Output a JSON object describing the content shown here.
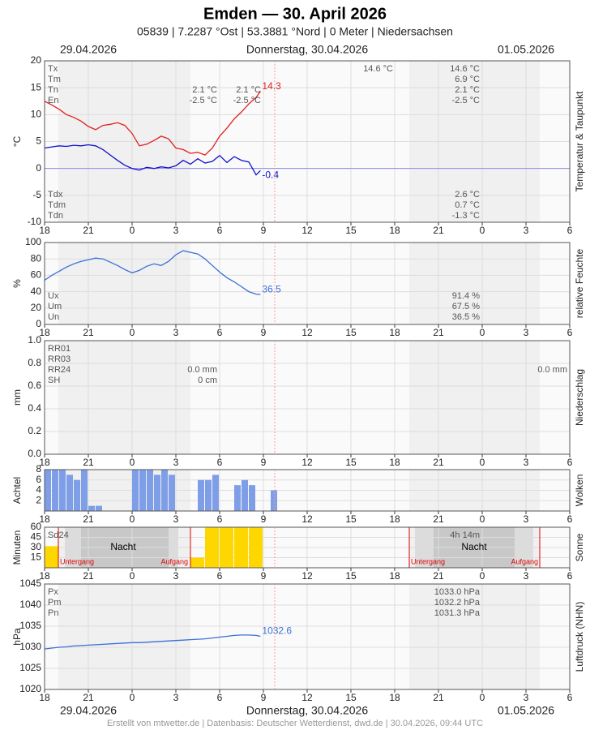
{
  "header": {
    "title": "Emden  —  30. April 2026",
    "subtitle": "05839  |  7.2287 °Ost  |  53.3881 °Nord  |  0 Meter  |  Niedersachsen",
    "date_left": "29.04.2026",
    "date_center": "Donnerstag, 30.04.2026",
    "date_right": "01.05.2026"
  },
  "footer": "Erstellt von mtwetter.de | Datenbasis: Deutscher Wetterdienst, dwd.de | 30.04.2026, 09:44 UTC",
  "chart_data": [
    {
      "type": "line",
      "ylabel": "°C",
      "side_label": "Temperatur & Taupunkt",
      "xlim": [
        0,
        36
      ],
      "xticks": [
        {
          "value": 0,
          "label": "18"
        },
        {
          "value": 3,
          "label": "21"
        },
        {
          "value": 6,
          "label": "0"
        },
        {
          "value": 9,
          "label": "3"
        },
        {
          "value": 12,
          "label": "6"
        },
        {
          "value": 15,
          "label": "9"
        },
        {
          "value": 18,
          "label": "12"
        },
        {
          "value": 21,
          "label": "15"
        },
        {
          "value": 24,
          "label": "18"
        },
        {
          "value": 27,
          "label": "21"
        },
        {
          "value": 30,
          "label": "0"
        },
        {
          "value": 33,
          "label": "3"
        },
        {
          "value": 36,
          "label": "6"
        }
      ],
      "ylim": [
        -10,
        20
      ],
      "yticks": [
        -10,
        -5,
        0,
        5,
        10,
        15,
        20
      ],
      "x": [
        0,
        0.5,
        1,
        1.5,
        2,
        2.5,
        3,
        3.5,
        4,
        4.5,
        5,
        5.5,
        6,
        6.5,
        7,
        7.5,
        8,
        8.5,
        9,
        9.5,
        10,
        10.5,
        11,
        11.5,
        12,
        12.5,
        13,
        13.5,
        14,
        14.5,
        14.8
      ],
      "series": [
        {
          "color": "#e02020",
          "values": [
            12.5,
            11.8,
            11,
            10,
            9.5,
            8.8,
            7.8,
            7.2,
            8,
            8.2,
            8.5,
            8,
            6.5,
            4.2,
            4.5,
            5.2,
            6,
            5.5,
            3.8,
            3.5,
            2.8,
            3,
            2.5,
            3.8,
            6,
            7.5,
            9.2,
            10.5,
            12,
            13.2,
            14.3
          ]
        },
        {
          "color": "#1010cc",
          "values": [
            3.8,
            4,
            4.2,
            4.1,
            4.3,
            4.2,
            4.4,
            4.2,
            3.5,
            2.5,
            1.5,
            0.6,
            0,
            -0.3,
            0.2,
            0,
            0.3,
            0.1,
            0.5,
            1.5,
            0.8,
            1.8,
            1,
            1.3,
            2.4,
            1.1,
            2.2,
            1.5,
            1.2,
            -1.2,
            -0.4
          ]
        }
      ],
      "stats": [
        [
          "Tx",
          null,
          null,
          "14.6 °C",
          "14.6 °C"
        ],
        [
          "Tm",
          null,
          null,
          null,
          "6.9 °C"
        ],
        [
          "Tn",
          "2.1 °C",
          "2.1 °C",
          null,
          "2.1 °C"
        ],
        [
          "En",
          "-2.5 °C",
          "-2.5 °C",
          null,
          "-2.5 °C"
        ]
      ],
      "stats_bottom": [
        [
          "Tdx",
          "2.6 °C"
        ],
        [
          "Tdm",
          "0.7 °C"
        ],
        [
          "Tdn",
          "-1.3 °C"
        ]
      ]
    },
    {
      "type": "line",
      "ylabel": "%",
      "side_label": "relative Feuchte",
      "xlim": [
        0,
        36
      ],
      "xticks": [
        {
          "value": 0,
          "label": "18"
        },
        {
          "value": 3,
          "label": "21"
        },
        {
          "value": 6,
          "label": "0"
        },
        {
          "value": 9,
          "label": "3"
        },
        {
          "value": 12,
          "label": "6"
        },
        {
          "value": 15,
          "label": "9"
        },
        {
          "value": 18,
          "label": "12"
        },
        {
          "value": 21,
          "label": "15"
        },
        {
          "value": 24,
          "label": "18"
        },
        {
          "value": 27,
          "label": "21"
        },
        {
          "value": 30,
          "label": "0"
        },
        {
          "value": 33,
          "label": "3"
        },
        {
          "value": 36,
          "label": "6"
        }
      ],
      "ylim": [
        0,
        100
      ],
      "yticks": [
        0,
        20,
        40,
        60,
        80,
        100
      ],
      "x": [
        0,
        0.5,
        1,
        1.5,
        2,
        2.5,
        3,
        3.5,
        4,
        4.5,
        5,
        5.5,
        6,
        6.5,
        7,
        7.5,
        8,
        8.5,
        9,
        9.5,
        10,
        10.5,
        11,
        11.5,
        12,
        12.5,
        13,
        13.5,
        14,
        14.5,
        14.8
      ],
      "series": [
        {
          "color": "#3a6fd8",
          "values": [
            54,
            60,
            65,
            70,
            74,
            77,
            79,
            81,
            80,
            76,
            72,
            67,
            63,
            66,
            71,
            74,
            72,
            77,
            85,
            90,
            88,
            86,
            80,
            72,
            64,
            57,
            52,
            46,
            40,
            37,
            36.5
          ]
        }
      ],
      "stats": [
        [
          "Ux",
          "91.4 %"
        ],
        [
          "Um",
          "67.5 %"
        ],
        [
          "Un",
          "36.5 %"
        ]
      ]
    },
    {
      "type": "bar",
      "ylabel": "mm",
      "side_label": "Niederschlag",
      "xlim": [
        0,
        36
      ],
      "xticks": [
        {
          "value": 0,
          "label": "18"
        },
        {
          "value": 3,
          "label": "21"
        },
        {
          "value": 6,
          "label": "0"
        },
        {
          "value": 9,
          "label": "3"
        },
        {
          "value": 12,
          "label": "6"
        },
        {
          "value": 15,
          "label": "9"
        },
        {
          "value": 18,
          "label": "12"
        },
        {
          "value": 21,
          "label": "15"
        },
        {
          "value": 24,
          "label": "18"
        },
        {
          "value": 27,
          "label": "21"
        },
        {
          "value": 30,
          "label": "0"
        },
        {
          "value": 33,
          "label": "3"
        },
        {
          "value": 36,
          "label": "6"
        }
      ],
      "ylim": [
        0,
        1
      ],
      "yticks": [
        {
          "value": 0,
          "label": "0.0"
        },
        0.2,
        0.4,
        0.6,
        0.8,
        {
          "value": 1,
          "label": "1.0"
        }
      ],
      "stats": [
        [
          "RR01"
        ],
        [
          "RR03"
        ],
        [
          "RR24",
          "0.0 mm",
          "0.0 mm"
        ],
        [
          "SH",
          "0 cm"
        ]
      ]
    },
    {
      "type": "bar",
      "ylabel": "Achtel",
      "side_label": "Wolken",
      "color": "#7f9ee8",
      "xlim": [
        0,
        36
      ],
      "xticks": [
        {
          "value": 0,
          "label": "18"
        },
        {
          "value": 3,
          "label": "21"
        },
        {
          "value": 6,
          "label": "0"
        },
        {
          "value": 9,
          "label": "3"
        },
        {
          "value": 12,
          "label": "6"
        },
        {
          "value": 15,
          "label": "9"
        },
        {
          "value": 18,
          "label": "12"
        },
        {
          "value": 21,
          "label": "15"
        },
        {
          "value": 24,
          "label": "18"
        },
        {
          "value": 27,
          "label": "21"
        },
        {
          "value": 30,
          "label": "0"
        },
        {
          "value": 33,
          "label": "3"
        },
        {
          "value": 36,
          "label": "6"
        }
      ],
      "ylim": [
        0,
        8
      ],
      "yticks": [
        2,
        4,
        6,
        8
      ],
      "x": [
        0,
        0.5,
        1,
        1.5,
        2,
        2.5,
        3,
        3.5,
        4,
        4.5,
        5,
        5.5,
        6,
        6.5,
        7,
        7.5,
        8,
        8.5,
        9,
        9.5,
        10,
        10.5,
        11,
        11.5,
        12,
        12.5,
        13,
        13.5,
        14,
        14.5,
        15,
        15.5
      ],
      "values": [
        8,
        8,
        8,
        7,
        6,
        8,
        1,
        1,
        0,
        0,
        0,
        0,
        8,
        8,
        8,
        7,
        8,
        7,
        0,
        0,
        0,
        6,
        6,
        7,
        0,
        0,
        5,
        6,
        5,
        0,
        0,
        4
      ]
    },
    {
      "type": "bar",
      "ylabel": "Minuten",
      "side_label": "Sonne",
      "color": "#ffd700",
      "xlim": [
        0,
        36
      ],
      "xticks": [
        {
          "value": 0,
          "label": "18"
        },
        {
          "value": 3,
          "label": "21"
        },
        {
          "value": 6,
          "label": "0"
        },
        {
          "value": 9,
          "label": "3"
        },
        {
          "value": 12,
          "label": "6"
        },
        {
          "value": 15,
          "label": "9"
        },
        {
          "value": 18,
          "label": "12"
        },
        {
          "value": 21,
          "label": "15"
        },
        {
          "value": 24,
          "label": "18"
        },
        {
          "value": 27,
          "label": "21"
        },
        {
          "value": 30,
          "label": "0"
        },
        {
          "value": 33,
          "label": "3"
        },
        {
          "value": 36,
          "label": "6"
        }
      ],
      "ylim": [
        0,
        60
      ],
      "yticks": [
        15,
        30,
        45,
        60
      ],
      "x": [
        0,
        1,
        2,
        3,
        4,
        5,
        6,
        7,
        8,
        9,
        10,
        11,
        12,
        13,
        14
      ],
      "values": [
        32,
        0,
        0,
        0,
        0,
        0,
        0,
        0,
        0,
        0,
        15,
        60,
        60,
        60,
        60
      ],
      "stats": [
        [
          "Sd24",
          "4h 14m"
        ]
      ],
      "annotations": [
        "Nacht",
        "Untergang",
        "Aufgang",
        "Nacht",
        "Untergang",
        "Aufgang"
      ]
    },
    {
      "type": "line",
      "ylabel": "hPa",
      "side_label": "Luftdruck (NHN)",
      "xlim": [
        0,
        36
      ],
      "xticks": [
        {
          "value": 0,
          "label": "18"
        },
        {
          "value": 3,
          "label": "21"
        },
        {
          "value": 6,
          "label": "0"
        },
        {
          "value": 9,
          "label": "3"
        },
        {
          "value": 12,
          "label": "6"
        },
        {
          "value": 15,
          "label": "9"
        },
        {
          "value": 18,
          "label": "12"
        },
        {
          "value": 21,
          "label": "15"
        },
        {
          "value": 24,
          "label": "18"
        },
        {
          "value": 27,
          "label": "21"
        },
        {
          "value": 30,
          "label": "0"
        },
        {
          "value": 33,
          "label": "3"
        },
        {
          "value": 36,
          "label": "6"
        }
      ],
      "ylim": [
        1020,
        1045
      ],
      "yticks": [
        1020,
        1025,
        1030,
        1035,
        1040,
        1045
      ],
      "x": [
        0,
        0.5,
        1,
        1.5,
        2,
        2.5,
        3,
        3.5,
        4,
        4.5,
        5,
        5.5,
        6,
        6.5,
        7,
        7.5,
        8,
        8.5,
        9,
        9.5,
        10,
        10.5,
        11,
        11.5,
        12,
        12.5,
        13,
        13.5,
        14,
        14.5,
        14.8
      ],
      "series": [
        {
          "color": "#3a6fd8",
          "values": [
            1029.6,
            1029.8,
            1030,
            1030.1,
            1030.3,
            1030.4,
            1030.5,
            1030.6,
            1030.7,
            1030.8,
            1030.9,
            1031,
            1031.1,
            1031.1,
            1031.2,
            1031.3,
            1031.4,
            1031.5,
            1031.6,
            1031.7,
            1031.8,
            1031.9,
            1032,
            1032.2,
            1032.4,
            1032.6,
            1032.8,
            1032.9,
            1032.9,
            1032.8,
            1032.6
          ]
        }
      ],
      "stats": [
        [
          "Px",
          "1033.0 hPa"
        ],
        [
          "Pm",
          "1032.2 hPa"
        ],
        [
          "Pn",
          "1031.3 hPa"
        ]
      ]
    }
  ]
}
